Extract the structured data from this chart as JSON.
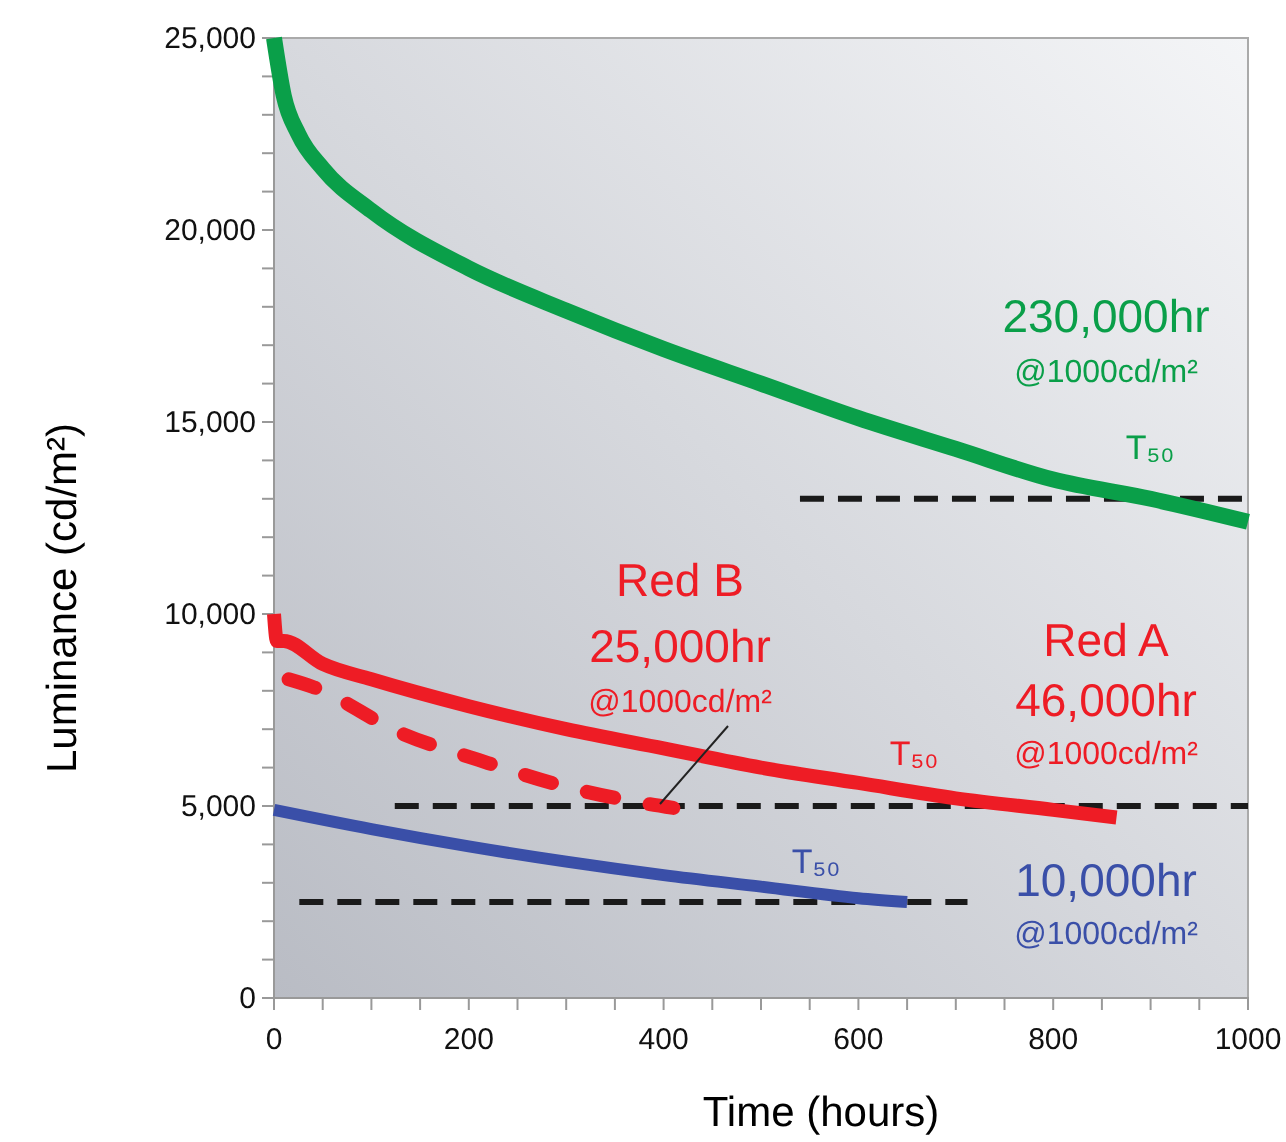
{
  "chart_data": {
    "type": "line",
    "xlabel": "Time (hours)",
    "ylabel": "Luminance (cd/m²)",
    "xlim": [
      0,
      1000
    ],
    "ylim": [
      0,
      25000
    ],
    "xticks": [
      0,
      {
        "value": 50,
        "label": null
      },
      {
        "value": 100,
        "label": null
      },
      {
        "value": 150,
        "label": null
      },
      200,
      {
        "value": 250,
        "label": null
      },
      {
        "value": 300,
        "label": null
      },
      {
        "value": 350,
        "label": null
      },
      400,
      {
        "value": 450,
        "label": null
      },
      {
        "value": 500,
        "label": null
      },
      {
        "value": 550,
        "label": null
      },
      600,
      {
        "value": 650,
        "label": null
      },
      {
        "value": 700,
        "label": null
      },
      {
        "value": 750,
        "label": null
      },
      800,
      {
        "value": 850,
        "label": null
      },
      {
        "value": 900,
        "label": null
      },
      {
        "value": 950,
        "label": null
      },
      1000
    ],
    "yticks": [
      0,
      {
        "value": 1000,
        "label": null
      },
      {
        "value": 2000,
        "label": null
      },
      {
        "value": 3000,
        "label": null
      },
      {
        "value": 4000,
        "label": null
      },
      {
        "value": 5000,
        "label": "5,000"
      },
      {
        "value": 6000,
        "label": null
      },
      {
        "value": 7000,
        "label": null
      },
      {
        "value": 8000,
        "label": null
      },
      {
        "value": 9000,
        "label": null
      },
      {
        "value": 10000,
        "label": "10,000"
      },
      {
        "value": 11000,
        "label": null
      },
      {
        "value": 12000,
        "label": null
      },
      {
        "value": 13000,
        "label": null
      },
      {
        "value": 14000,
        "label": null
      },
      {
        "value": 15000,
        "label": "15,000"
      },
      {
        "value": 16000,
        "label": null
      },
      {
        "value": 17000,
        "label": null
      },
      {
        "value": 18000,
        "label": null
      },
      {
        "value": 19000,
        "label": null
      },
      {
        "value": 20000,
        "label": "20,000"
      },
      {
        "value": 21000,
        "label": null
      },
      {
        "value": 22000,
        "label": null
      },
      {
        "value": 23000,
        "label": null
      },
      {
        "value": 24000,
        "label": null
      },
      {
        "value": 25000,
        "label": "25,000"
      }
    ],
    "grid": false,
    "series": [
      {
        "color": "#0a9f49",
        "x": [
          0,
          10,
          25,
          50,
          100,
          200,
          300,
          400,
          500,
          600,
          700,
          800,
          900,
          1000
        ],
        "values": [
          25000,
          23500,
          22500,
          21600,
          20500,
          19000,
          17900,
          16900,
          16000,
          15100,
          14300,
          13500,
          13000,
          12400
        ]
      },
      {
        "color": "#ee1c25",
        "x": [
          0,
          3,
          10,
          50,
          100,
          200,
          300,
          400,
          500,
          600,
          700,
          800,
          865
        ],
        "values": [
          10000,
          9300,
          9300,
          8700,
          8300,
          7600,
          7000,
          6500,
          6000,
          5600,
          5200,
          4900,
          4700
        ]
      },
      {
        "color": "#ee1c25",
        "line_style": "dashed",
        "x": [
          15,
          40,
          130,
          210,
          300,
          385,
          410
        ],
        "values": [
          8300,
          8100,
          6900,
          6200,
          5500,
          5050,
          4950
        ]
      },
      {
        "color": "#3a4fa8",
        "x": [
          0,
          100,
          200,
          300,
          400,
          500,
          600,
          650
        ],
        "values": [
          4900,
          4400,
          3950,
          3550,
          3200,
          2900,
          2600,
          2500
        ]
      },
      {
        "color": "#1a1a1a",
        "line_style": "dashed",
        "x": [
          540,
          1000
        ],
        "values": [
          13000,
          13000
        ]
      },
      {
        "color": "#1a1a1a",
        "line_style": "dashed",
        "x": [
          124,
          1000
        ],
        "values": [
          5000,
          5000
        ]
      },
      {
        "color": "#1a1a1a",
        "line_style": "dashed",
        "x": [
          26,
          712
        ],
        "values": [
          2500,
          2500
        ]
      }
    ],
    "annotations": [
      "230,000hr",
      "@1000cd/m²",
      "T₅₀",
      "Red B",
      "25,000hr",
      "@1000cd/m²",
      "Red A",
      "46,000hr",
      "@1000cd/m²",
      "T₅₀",
      "10,000hr",
      "@1000cd/m²",
      "T₅₀"
    ]
  }
}
